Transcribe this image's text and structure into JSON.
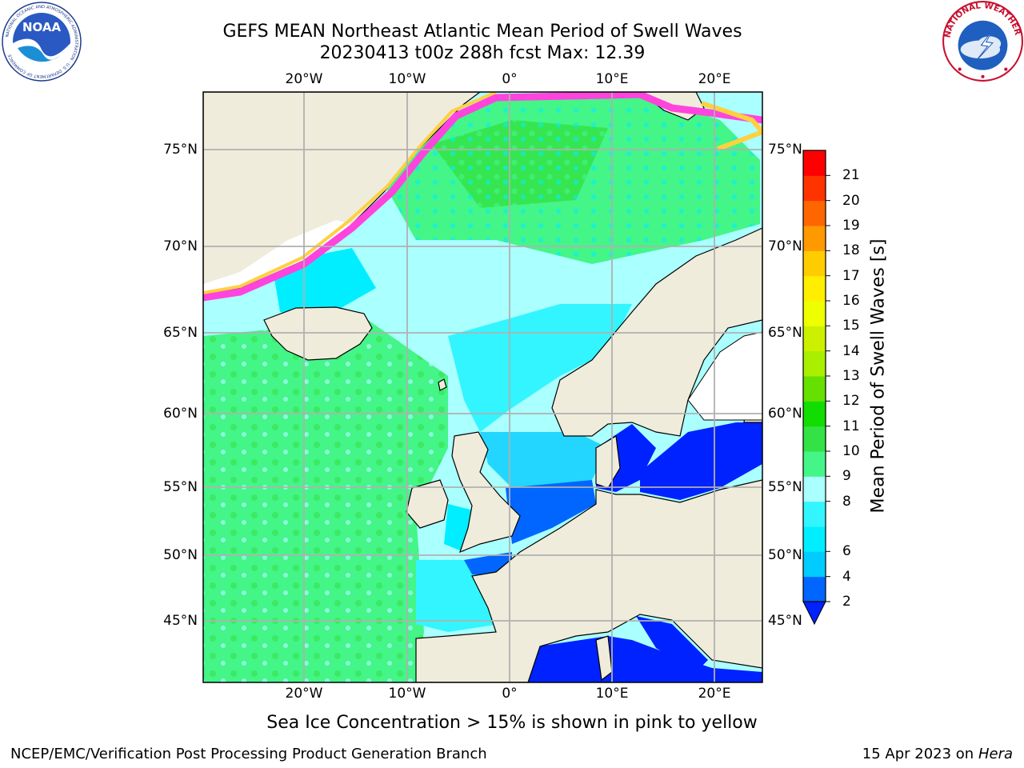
{
  "header": {
    "title_line1": "GEFS MEAN Northeast Atlantic Mean Period of Swell Waves",
    "title_line2": "20230413 t00z 288h fcst   Max: 12.39"
  },
  "logos": {
    "noaa": "NOAA",
    "noaa_ring": "NATIONAL OCEANIC AND ATMOSPHERIC ADMINISTRATION · U.S. DEPARTMENT OF COMMERCE",
    "nws_ring": "NATIONAL WEATHER SERVICE"
  },
  "map": {
    "lon_ticks": [
      "20°W",
      "10°W",
      "0°",
      "10°E",
      "20°E"
    ],
    "lat_ticks": [
      "75°N",
      "70°N",
      "65°N",
      "60°N",
      "55°N",
      "50°N",
      "45°N"
    ],
    "colors": {
      "land": "#efecdc",
      "ice_free_white": "#ffffff",
      "grid": "#b0b0b0",
      "ice_pink": "#ff44dd",
      "ice_yellow": "#ffd040"
    }
  },
  "colorbar": {
    "title": "Mean Period of Swell Waves [s]",
    "levels": [
      2,
      4,
      6,
      7,
      8,
      9,
      10,
      11,
      12,
      13,
      14,
      15,
      16,
      17,
      18,
      19,
      20,
      21
    ],
    "labels": [
      "2",
      "4",
      "6",
      "8",
      "9",
      "10",
      "11",
      "12",
      "13",
      "14",
      "15",
      "16",
      "17",
      "18",
      "19",
      "20",
      "21"
    ],
    "colors": [
      "#0066ff",
      "#00ccff",
      "#00eeff",
      "#33f5ff",
      "#aaffff",
      "#44f588",
      "#33e244",
      "#11dd00",
      "#66e000",
      "#aaee00",
      "#ccf000",
      "#eeff00",
      "#ffee00",
      "#ffcc00",
      "#ff9900",
      "#ff6600",
      "#ff3300",
      "#ff0000"
    ],
    "under_color": "#0022ff"
  },
  "caption": "Sea Ice Concentration > 15% is shown in pink to yellow",
  "footer": {
    "left": "NCEP/EMC/Verification Post Processing Product Generation Branch",
    "right_prefix": "15 Apr 2023 on ",
    "right_italic": "Hera"
  }
}
